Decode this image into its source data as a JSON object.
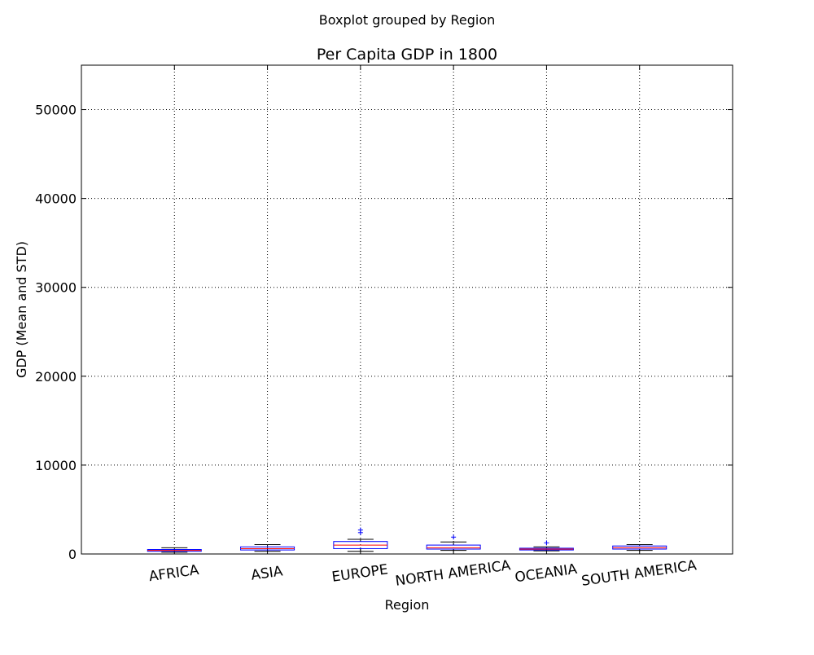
{
  "figure": {
    "suptitle": "Boxplot grouped by Region"
  },
  "chart_data": {
    "type": "box",
    "title": "Per Capita GDP in 1800",
    "xlabel": "Region",
    "ylabel": "GDP (Mean and STD)",
    "ylim": [
      0,
      55000
    ],
    "yticks": [
      0,
      10000,
      20000,
      30000,
      40000,
      50000
    ],
    "ytick_labels": [
      "0",
      "10000",
      "20000",
      "30000",
      "40000",
      "50000"
    ],
    "grid": true,
    "categories": [
      "AFRICA",
      "ASIA",
      "EUROPE",
      "NORTH AMERICA",
      "OCEANIA",
      "SOUTH AMERICA"
    ],
    "boxes": [
      {
        "whislo": 200,
        "q1": 300,
        "med": 400,
        "q3": 500,
        "whishi": 700,
        "fliers": []
      },
      {
        "whislo": 300,
        "q1": 450,
        "med": 600,
        "q3": 800,
        "whishi": 1050,
        "fliers": []
      },
      {
        "whislo": 300,
        "q1": 600,
        "med": 1000,
        "q3": 1400,
        "whishi": 1650,
        "fliers": [
          2400,
          2700
        ]
      },
      {
        "whislo": 400,
        "q1": 550,
        "med": 700,
        "q3": 1000,
        "whishi": 1350,
        "fliers": [
          1900
        ]
      },
      {
        "whislo": 350,
        "q1": 450,
        "med": 550,
        "q3": 650,
        "whishi": 800,
        "fliers": [
          1250
        ]
      },
      {
        "whislo": 400,
        "q1": 550,
        "med": 700,
        "q3": 900,
        "whishi": 1050,
        "fliers": []
      }
    ],
    "colors": {
      "box": "#0000ff",
      "median": "#ff0000",
      "whisker": "#000000",
      "flier": "#0000ff",
      "grid": "#000000"
    }
  }
}
